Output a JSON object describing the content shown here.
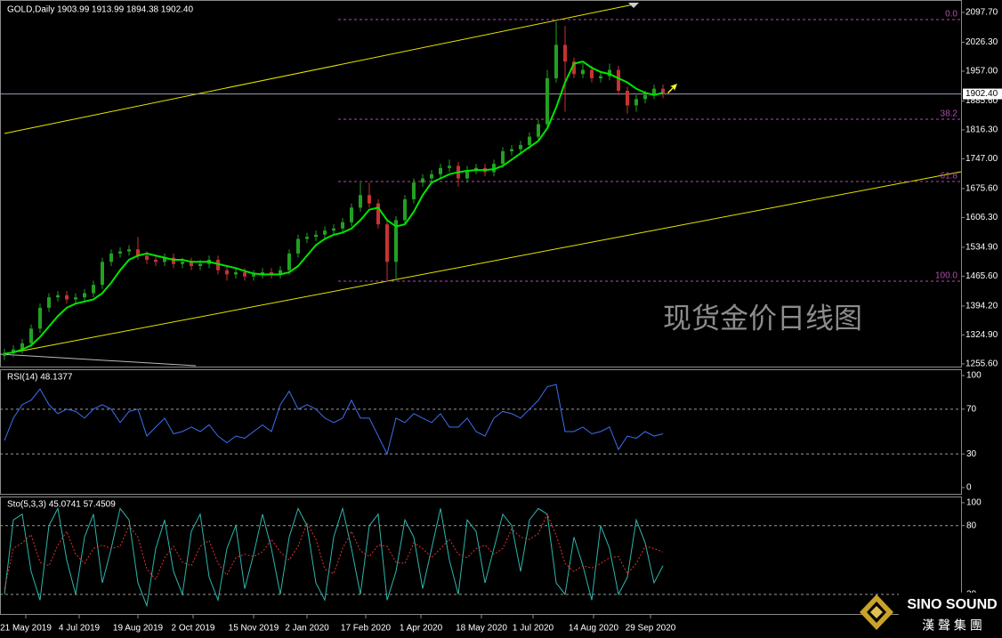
{
  "chart_data": [
    {
      "type": "candlestick",
      "title": "GOLD,Daily  1903.99 1913.99 1894.38 1902.40",
      "annotation": "现货金价日线图",
      "up_color": "#22a022",
      "down_color": "#c83232",
      "xlim": [
        -2.5,
        537.5
      ],
      "x": [
        0,
        5,
        10,
        15,
        20,
        25,
        30,
        35,
        40,
        45,
        50,
        55,
        60,
        65,
        70,
        75,
        80,
        85,
        90,
        95,
        100,
        105,
        110,
        115,
        120,
        125,
        130,
        135,
        140,
        145,
        150,
        155,
        160,
        165,
        170,
        175,
        180,
        185,
        190,
        195,
        200,
        205,
        210,
        215,
        220,
        225,
        230,
        235,
        240,
        245,
        250,
        255,
        260,
        265,
        270,
        275,
        280,
        285,
        290,
        295,
        300,
        305,
        310,
        315,
        320,
        325,
        330,
        335,
        340,
        345,
        350,
        355,
        360,
        365,
        370
      ],
      "open": [
        1275,
        1282,
        1290,
        1305,
        1340,
        1390,
        1415,
        1420,
        1410,
        1415,
        1425,
        1445,
        1500,
        1520,
        1525,
        1530,
        1515,
        1505,
        1500,
        1510,
        1495,
        1500,
        1490,
        1495,
        1505,
        1480,
        1470,
        1475,
        1465,
        1470,
        1475,
        1470,
        1480,
        1520,
        1555,
        1560,
        1565,
        1575,
        1580,
        1595,
        1630,
        1660,
        1640,
        1590,
        1500,
        1600,
        1650,
        1690,
        1700,
        1710,
        1725,
        1730,
        1700,
        1720,
        1725,
        1715,
        1735,
        1765,
        1770,
        1780,
        1800,
        1830,
        1940,
        2020,
        1980,
        1950,
        1960,
        1940,
        1945,
        1960,
        1910,
        1875,
        1890,
        1900,
        1915
      ],
      "high": [
        1292,
        1300,
        1315,
        1350,
        1400,
        1425,
        1430,
        1430,
        1425,
        1435,
        1455,
        1510,
        1530,
        1535,
        1540,
        1560,
        1525,
        1515,
        1520,
        1520,
        1510,
        1510,
        1505,
        1515,
        1515,
        1490,
        1485,
        1485,
        1480,
        1485,
        1485,
        1490,
        1530,
        1565,
        1570,
        1575,
        1585,
        1590,
        1605,
        1640,
        1690,
        1690,
        1650,
        1600,
        1610,
        1660,
        1700,
        1710,
        1720,
        1735,
        1745,
        1740,
        1730,
        1735,
        1735,
        1745,
        1775,
        1780,
        1790,
        1810,
        1840,
        1960,
        2075,
        2065,
        1990,
        1975,
        1970,
        1955,
        1975,
        1970,
        1920,
        1900,
        1910,
        1925,
        1925
      ],
      "low": [
        1265,
        1272,
        1280,
        1295,
        1330,
        1380,
        1405,
        1400,
        1400,
        1405,
        1415,
        1435,
        1490,
        1510,
        1515,
        1505,
        1495,
        1490,
        1490,
        1485,
        1485,
        1480,
        1480,
        1485,
        1470,
        1455,
        1460,
        1455,
        1455,
        1460,
        1460,
        1460,
        1470,
        1510,
        1545,
        1550,
        1555,
        1565,
        1570,
        1585,
        1620,
        1630,
        1580,
        1455,
        1455,
        1590,
        1640,
        1680,
        1690,
        1700,
        1715,
        1680,
        1690,
        1710,
        1705,
        1705,
        1725,
        1755,
        1760,
        1770,
        1790,
        1820,
        1930,
        1860,
        1940,
        1940,
        1930,
        1930,
        1935,
        1900,
        1855,
        1860,
        1880,
        1890,
        1892
      ],
      "close": [
        1282,
        1290,
        1305,
        1340,
        1390,
        1415,
        1420,
        1410,
        1415,
        1425,
        1445,
        1500,
        1520,
        1525,
        1530,
        1515,
        1505,
        1500,
        1510,
        1495,
        1500,
        1490,
        1495,
        1505,
        1480,
        1470,
        1475,
        1465,
        1470,
        1475,
        1470,
        1480,
        1520,
        1555,
        1560,
        1565,
        1575,
        1580,
        1595,
        1630,
        1660,
        1640,
        1590,
        1500,
        1600,
        1650,
        1690,
        1700,
        1710,
        1725,
        1730,
        1700,
        1720,
        1725,
        1715,
        1735,
        1765,
        1770,
        1780,
        1800,
        1830,
        1940,
        2020,
        1980,
        1950,
        1960,
        1940,
        1945,
        1960,
        1910,
        1875,
        1890,
        1900,
        1915,
        1902
      ],
      "overlay": {
        "color": "#00e600",
        "values": [
          1280,
          1283,
          1290,
          1300,
          1320,
          1345,
          1370,
          1390,
          1400,
          1405,
          1410,
          1425,
          1450,
          1480,
          1505,
          1515,
          1520,
          1515,
          1510,
          1505,
          1505,
          1500,
          1500,
          1500,
          1495,
          1490,
          1485,
          1478,
          1472,
          1470,
          1470,
          1470,
          1475,
          1490,
          1515,
          1540,
          1555,
          1565,
          1570,
          1580,
          1600,
          1625,
          1630,
          1600,
          1585,
          1590,
          1620,
          1660,
          1690,
          1700,
          1710,
          1715,
          1718,
          1720,
          1720,
          1722,
          1730,
          1745,
          1760,
          1775,
          1790,
          1820,
          1870,
          1930,
          1975,
          1980,
          1965,
          1955,
          1950,
          1940,
          1930,
          1915,
          1905,
          1900,
          1905
        ]
      },
      "fib_color": "#b04cb0",
      "fib_levels": [
        {
          "value": 2080.6,
          "label": "0.0"
        },
        {
          "value": 1841.8,
          "label": "38.2"
        },
        {
          "value": 1692.6,
          "label": "61.8"
        },
        {
          "value": 1453.8,
          "label": "100.0"
        }
      ],
      "current": {
        "value": 1902.4,
        "label": "1902.40"
      },
      "ylim": [
        1249,
        2127.5
      ],
      "yticks": [
        {
          "value": 2097.7,
          "label": "2097.70"
        },
        {
          "value": 2026.3,
          "label": "2026.30"
        },
        {
          "value": 1957,
          "label": "1957.00"
        },
        {
          "value": 1885.6,
          "label": "1885.60"
        },
        {
          "value": 1816.3,
          "label": "1816.30"
        },
        {
          "value": 1747,
          "label": "1747.00"
        },
        {
          "value": 1675.6,
          "label": "1675.60"
        },
        {
          "value": 1606.3,
          "label": "1606.30"
        },
        {
          "value": 1534.9,
          "label": "1534.90"
        },
        {
          "value": 1465.6,
          "label": "1465.60"
        },
        {
          "value": 1394.2,
          "label": "1394.20"
        },
        {
          "value": 1324.9,
          "label": "1324.90"
        },
        {
          "value": 1255.6,
          "label": "1255.60"
        }
      ],
      "xticks": [
        {
          "value": 12,
          "label": "21 May 2019"
        },
        {
          "value": 42,
          "label": "4 Jul 2019"
        },
        {
          "value": 75,
          "label": "19 Aug 2019"
        },
        {
          "value": 106,
          "label": "2 Oct 2019"
        },
        {
          "value": 140,
          "label": "15 Nov 2019"
        },
        {
          "value": 170,
          "label": "2 Jan 2020"
        },
        {
          "value": 203,
          "label": "17 Feb 2020"
        },
        {
          "value": 234,
          "label": "1 Apr 2020"
        },
        {
          "value": 268,
          "label": "18 May 2020"
        },
        {
          "value": 297,
          "label": "1 Jul 2020"
        },
        {
          "value": 331,
          "label": "14 Aug 2020"
        },
        {
          "value": 363,
          "label": "29 Sep 2020"
        }
      ]
    },
    {
      "type": "line",
      "title": "RSI(14) 48.1377",
      "ylim": [
        -5.6,
        105.6
      ],
      "yticks": [
        100,
        70,
        30,
        0
      ],
      "levels": [
        70,
        30
      ],
      "series": [
        {
          "color": "#3c6ff0",
          "values": [
            42,
            62,
            74,
            78,
            88,
            74,
            66,
            70,
            68,
            62,
            70,
            74,
            70,
            58,
            68,
            70,
            46,
            54,
            62,
            48,
            50,
            54,
            50,
            56,
            46,
            40,
            46,
            44,
            50,
            56,
            50,
            74,
            86,
            70,
            74,
            70,
            62,
            58,
            62,
            78,
            62,
            62,
            46,
            30,
            62,
            58,
            66,
            62,
            58,
            66,
            54,
            54,
            62,
            50,
            46,
            62,
            68,
            66,
            62,
            70,
            78,
            90,
            92,
            50,
            50,
            54,
            48,
            50,
            54,
            34,
            46,
            44,
            50,
            46,
            48
          ]
        }
      ]
    },
    {
      "type": "line",
      "title": "Sto(5,3,3) 45.0741 57.4509",
      "ylim": [
        2.9,
        105.4
      ],
      "yticks": [
        100,
        80,
        20
      ],
      "levels": [
        80,
        20
      ],
      "series": [
        {
          "color": "#2fb5ad",
          "values": [
            20,
            85,
            90,
            40,
            15,
            80,
            95,
            50,
            20,
            70,
            90,
            30,
            60,
            95,
            85,
            30,
            10,
            60,
            85,
            40,
            20,
            75,
            90,
            35,
            15,
            60,
            80,
            25,
            55,
            90,
            60,
            20,
            70,
            95,
            80,
            30,
            15,
            70,
            95,
            60,
            20,
            80,
            90,
            15,
            40,
            85,
            70,
            25,
            60,
            95,
            50,
            20,
            85,
            75,
            30,
            60,
            90,
            80,
            40,
            85,
            95,
            90,
            30,
            20,
            70,
            45,
            15,
            80,
            60,
            20,
            35,
            85,
            65,
            30,
            45
          ]
        },
        {
          "color": "#e03232",
          "dash": true,
          "values": [
            25,
            60,
            65,
            72,
            48,
            45,
            63,
            75,
            55,
            47,
            60,
            63,
            60,
            62,
            80,
            70,
            42,
            33,
            52,
            62,
            48,
            45,
            62,
            67,
            47,
            37,
            52,
            55,
            53,
            57,
            68,
            57,
            50,
            62,
            82,
            68,
            42,
            38,
            60,
            75,
            58,
            53,
            63,
            62,
            48,
            47,
            65,
            60,
            52,
            60,
            68,
            55,
            52,
            60,
            63,
            55,
            60,
            77,
            70,
            68,
            73,
            90,
            72,
            47,
            40,
            45,
            43,
            47,
            52,
            53,
            38,
            47,
            62,
            60,
            57
          ]
        }
      ]
    }
  ],
  "logo": {
    "name": "SINO SOUND",
    "subtitle": "漢 聲 集 團"
  }
}
